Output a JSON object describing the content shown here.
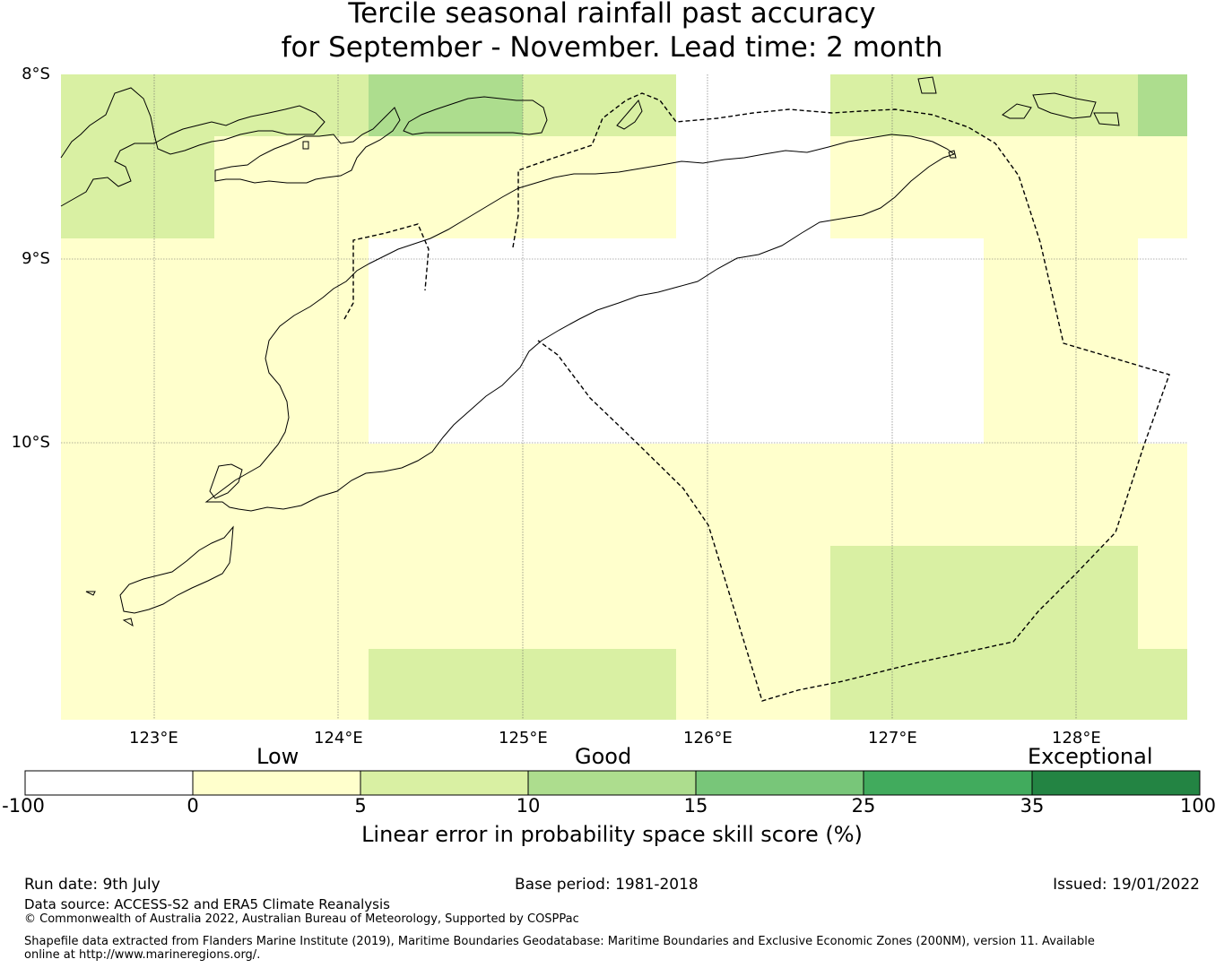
{
  "title": {
    "line1": "Tercile seasonal rainfall past accuracy",
    "line2": "for September - November. Lead time: 2 month"
  },
  "map": {
    "lat_labels": [
      "8°S",
      "9°S",
      "10°S"
    ],
    "lon_labels": [
      "123°E",
      "124°E",
      "125°E",
      "126°E",
      "127°E",
      "128°E"
    ],
    "colors": {
      "low": "#ffffcc",
      "low_mid": "#d9f0a3",
      "mid": "#addd8e",
      "no_skill": "#ffffff"
    }
  },
  "colorbar": {
    "categories": [
      "Low",
      "Good",
      "Exceptional"
    ],
    "ticks": [
      "-100",
      "0",
      "5",
      "10",
      "15",
      "25",
      "35",
      "100"
    ],
    "colors": [
      "#ffffff",
      "#ffffcc",
      "#d9f0a3",
      "#addd8e",
      "#78c679",
      "#41ab5d",
      "#238443"
    ],
    "label": "Linear error in probability space skill score (%)"
  },
  "footer": {
    "run_date": "Run date: 9th July",
    "base_period": "Base period: 1981-2018",
    "issued": "Issued: 19/01/2022",
    "data_source": "Data source: ACCESS-S2 and ERA5 Climate Reanalysis",
    "copyright": "© Commonwealth of Australia 2022, Australian Bureau of Meteorology, Supported by COSPPac",
    "shapefile": "Shapefile data extracted from Flanders Marine Institute (2019), Maritime Boundaries Geodatabase: Maritime Boundaries and Exclusive Economic Zones (200NM), version 11. Available online at http://www.marineregions.org/."
  }
}
